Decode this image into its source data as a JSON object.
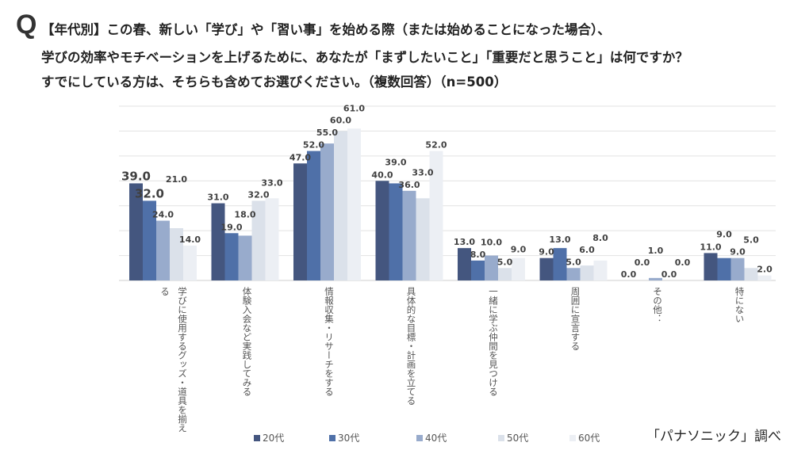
{
  "title": {
    "q_mark": "Q",
    "line1": "【年代別】この春、新しい「学び」や「習い事」を始める際（または始めることになった場合）、",
    "line2": "学びの効率やモチベーションを上げるために、あなたが「まずしたいこと」「重要だと思うこと」は何ですか？",
    "line3": "すでにしている方は、そちらも含めてお選びください。（複数回答）（n=500）"
  },
  "source": "「パナソニック」調べ",
  "chart_data": {
    "type": "bar",
    "categories": [
      "学びに使用するグッズ・道具を揃える",
      "体験入会など実践してみる",
      "情報収集・リサーチをする",
      "具体的な目標・計画を立てる",
      "一緒に学ぶ仲間を見つける",
      "周囲に宣言する",
      "その他：",
      "特にない"
    ],
    "series": [
      {
        "name": "20代",
        "color": "#44567f",
        "values": [
          39,
          31,
          47,
          40,
          13,
          9,
          0,
          11
        ]
      },
      {
        "name": "30代",
        "color": "#4f70a8",
        "values": [
          32,
          19,
          52,
          39,
          8,
          13,
          0,
          9
        ]
      },
      {
        "name": "40代",
        "color": "#98abcc",
        "values": [
          24,
          18,
          55,
          36,
          10,
          5,
          1,
          9
        ]
      },
      {
        "name": "50代",
        "color": "#dbe1ea",
        "values": [
          21,
          32,
          60,
          33,
          5,
          6,
          0,
          5
        ]
      },
      {
        "name": "60代",
        "color": "#eceff4",
        "values": [
          14,
          33,
          61,
          52,
          9,
          8,
          0,
          2
        ]
      }
    ],
    "ylim": [
      0,
      70
    ],
    "grid": true,
    "legend": "bottom",
    "value_format": "0.0"
  }
}
